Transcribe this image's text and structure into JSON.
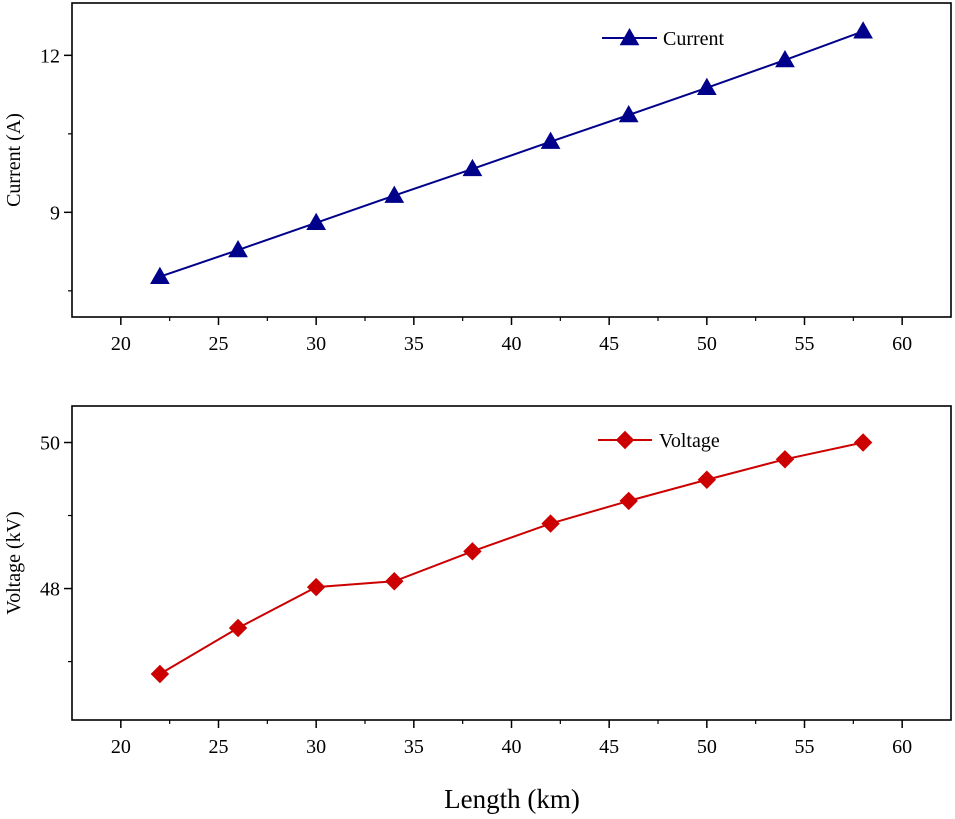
{
  "chart_data": [
    {
      "type": "line",
      "title": "",
      "xlabel": "",
      "ylabel": "Current (A)",
      "xlim": [
        17.5,
        62.5
      ],
      "ylim": [
        7.0,
        13.0
      ],
      "xticks": [
        20,
        25,
        30,
        35,
        40,
        45,
        50,
        55,
        60
      ],
      "yticks": [
        9,
        12
      ],
      "yminor_ticks": [
        7.5,
        10.5
      ],
      "grid": false,
      "legend_position": "top-center",
      "series": [
        {
          "name": "Current",
          "color": "#00008B",
          "marker": "triangle",
          "x": [
            22,
            26,
            30,
            34,
            38,
            42,
            46,
            50,
            54,
            58
          ],
          "y": [
            7.77,
            8.28,
            8.8,
            9.32,
            9.83,
            10.35,
            10.86,
            11.38,
            11.91,
            12.46
          ]
        }
      ]
    },
    {
      "type": "line",
      "title": "",
      "xlabel": "Length (km)",
      "ylabel": "Voltage (kV)",
      "xlim": [
        17.5,
        62.5
      ],
      "ylim": [
        46.2,
        50.5
      ],
      "xticks": [
        20,
        25,
        30,
        35,
        40,
        45,
        50,
        55,
        60
      ],
      "yticks": [
        48,
        50
      ],
      "yminor_ticks": [
        47,
        49
      ],
      "grid": false,
      "legend_position": "top-center",
      "series": [
        {
          "name": "Voltage",
          "color": "#CC0000",
          "marker": "diamond",
          "x": [
            22,
            26,
            30,
            34,
            38,
            42,
            46,
            50,
            54,
            58
          ],
          "y": [
            46.83,
            47.46,
            48.02,
            48.1,
            48.51,
            48.89,
            49.2,
            49.49,
            49.77,
            50.0
          ]
        }
      ]
    }
  ]
}
